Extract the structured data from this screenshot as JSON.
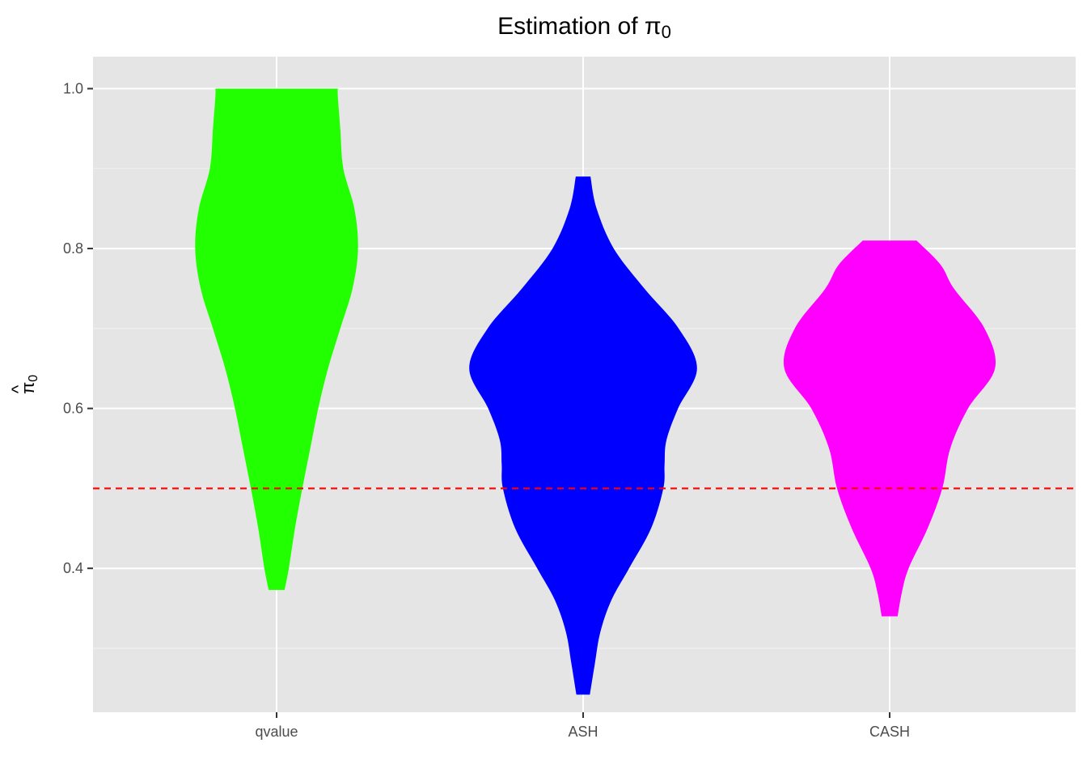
{
  "chart_data": {
    "type": "violin",
    "title": {
      "prefix": "Estimation of ",
      "symbol": "π",
      "subscript": "0"
    },
    "xlabel": "",
    "ylabel": {
      "symbol": "π",
      "hat": "^",
      "subscript": "0"
    },
    "categories": [
      "qvalue",
      "ASH",
      "CASH"
    ],
    "ylim": [
      0.22,
      1.04
    ],
    "yticks": [
      0.4,
      0.6,
      0.8,
      1.0
    ],
    "ytick_labels": [
      "0.4",
      "0.6",
      "0.8",
      "1.0"
    ],
    "grid": true,
    "legend": "none",
    "reference_line": {
      "y": 0.5,
      "color": "#ff0000",
      "style": "dashed"
    },
    "series": [
      {
        "category": "qvalue",
        "color": "#22ff00",
        "density": [
          [
            0.373,
            0.013
          ],
          [
            0.4,
            0.02
          ],
          [
            0.45,
            0.03
          ],
          [
            0.5,
            0.042
          ],
          [
            0.55,
            0.055
          ],
          [
            0.6,
            0.068
          ],
          [
            0.65,
            0.084
          ],
          [
            0.7,
            0.104
          ],
          [
            0.75,
            0.124
          ],
          [
            0.8,
            0.133
          ],
          [
            0.85,
            0.127
          ],
          [
            0.9,
            0.109
          ],
          [
            0.95,
            0.104
          ],
          [
            0.99,
            0.1
          ],
          [
            1.0,
            0.1
          ]
        ]
      },
      {
        "category": "ASH",
        "color": "#0000ff",
        "density": [
          [
            0.242,
            0.011
          ],
          [
            0.28,
            0.019
          ],
          [
            0.32,
            0.028
          ],
          [
            0.36,
            0.046
          ],
          [
            0.4,
            0.075
          ],
          [
            0.45,
            0.111
          ],
          [
            0.5,
            0.131
          ],
          [
            0.53,
            0.133
          ],
          [
            0.56,
            0.136
          ],
          [
            0.6,
            0.155
          ],
          [
            0.65,
            0.186
          ],
          [
            0.7,
            0.156
          ],
          [
            0.75,
            0.1
          ],
          [
            0.8,
            0.05
          ],
          [
            0.85,
            0.022
          ],
          [
            0.89,
            0.012
          ]
        ]
      },
      {
        "category": "CASH",
        "color": "#ff00ff",
        "density": [
          [
            0.34,
            0.013
          ],
          [
            0.37,
            0.02
          ],
          [
            0.4,
            0.031
          ],
          [
            0.45,
            0.062
          ],
          [
            0.5,
            0.086
          ],
          [
            0.55,
            0.099
          ],
          [
            0.6,
            0.128
          ],
          [
            0.65,
            0.172
          ],
          [
            0.7,
            0.155
          ],
          [
            0.75,
            0.105
          ],
          [
            0.78,
            0.083
          ],
          [
            0.81,
            0.044
          ]
        ]
      }
    ]
  }
}
